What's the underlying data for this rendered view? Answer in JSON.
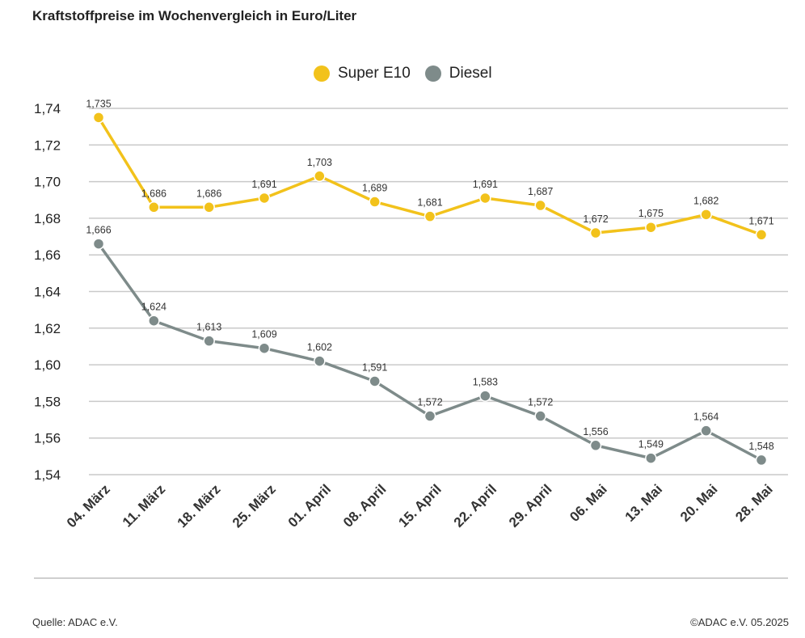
{
  "chart_data": {
    "type": "line",
    "title": "Kraftstoffpreise im Wochenvergleich in Euro/Liter",
    "categories": [
      "04. März",
      "11. März",
      "18. März",
      "25. März",
      "01. April",
      "08. April",
      "15. April",
      "22. April",
      "29. April",
      "06. Mai",
      "13. Mai",
      "20. Mai",
      "28. Mai"
    ],
    "series": [
      {
        "name": "Super E10",
        "color": "#f2c21b",
        "values": [
          1.735,
          1.686,
          1.686,
          1.691,
          1.703,
          1.689,
          1.681,
          1.691,
          1.687,
          1.672,
          1.675,
          1.682,
          1.671
        ],
        "labels": [
          "1,735",
          "1,686",
          "1,686",
          "1,691",
          "1,703",
          "1,689",
          "1,681",
          "1,691",
          "1,687",
          "1,672",
          "1,675",
          "1,682",
          "1,671"
        ]
      },
      {
        "name": "Diesel",
        "color": "#7e8b8a",
        "values": [
          1.666,
          1.624,
          1.613,
          1.609,
          1.602,
          1.591,
          1.572,
          1.583,
          1.572,
          1.556,
          1.549,
          1.564,
          1.548
        ],
        "labels": [
          "1,666",
          "1,624",
          "1,613",
          "1,609",
          "1,602",
          "1,591",
          "1,572",
          "1,583",
          "1,572",
          "1,556",
          "1,549",
          "1,564",
          "1,548"
        ]
      }
    ],
    "ylim": [
      1.54,
      1.74
    ],
    "yticks": [
      1.74,
      1.72,
      1.7,
      1.68,
      1.66,
      1.64,
      1.62,
      1.6,
      1.58,
      1.56,
      1.54
    ],
    "ytick_labels": [
      "1,74",
      "1,72",
      "1,70",
      "1,68",
      "1,66",
      "1,64",
      "1,62",
      "1,60",
      "1,58",
      "1,56",
      "1,54"
    ],
    "grid": true,
    "legend_position": "top-center"
  },
  "footer": {
    "source": "Quelle: ADAC e.V.",
    "copyright": "©ADAC e.V. 05.2025"
  }
}
